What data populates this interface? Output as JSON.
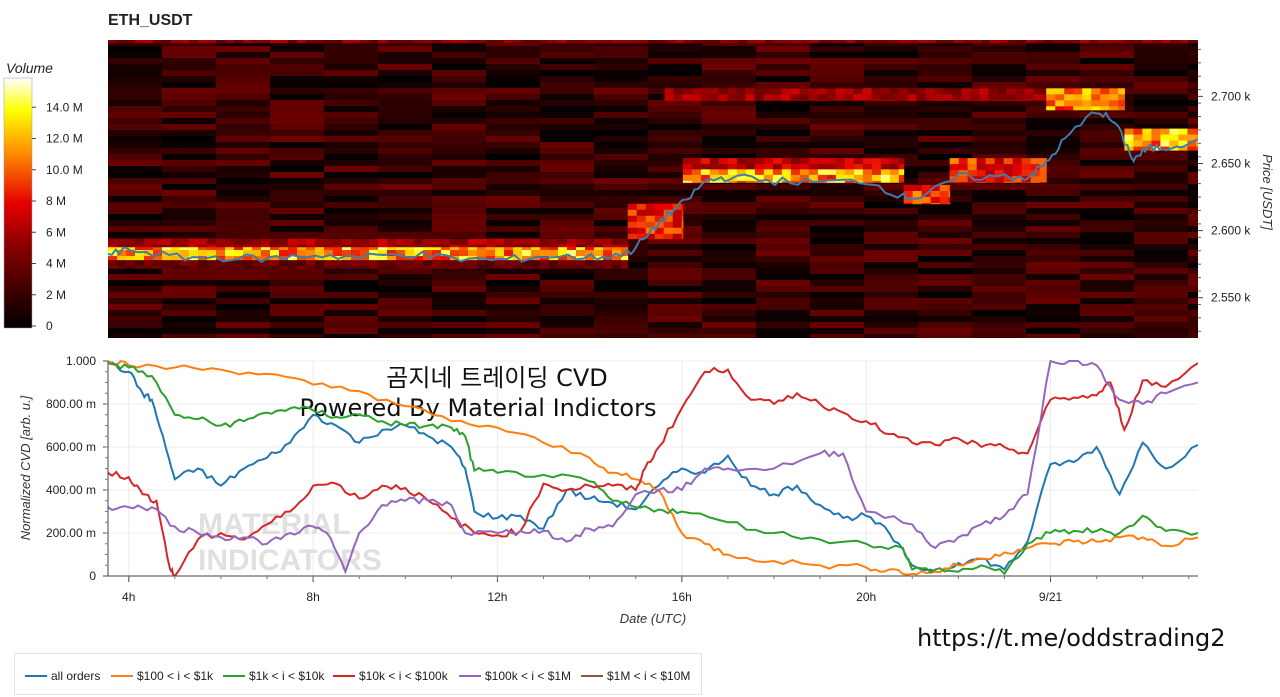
{
  "title": "ETH_USDT",
  "url": "https://t.me/oddstrading2",
  "colorbar": {
    "title": "Volume",
    "ticks": [
      {
        "label": "0",
        "value": 0
      },
      {
        "label": "2 M",
        "value": 2
      },
      {
        "label": "4 M",
        "value": 4
      },
      {
        "label": "6 M",
        "value": 6
      },
      {
        "label": "8 M",
        "value": 8
      },
      {
        "label": "10.0 M",
        "value": 10
      },
      {
        "label": "12.0 M",
        "value": 12
      },
      {
        "label": "14.0 M",
        "value": 14
      }
    ],
    "max": 16
  },
  "watermark": {
    "line1": "곰지네 트레이딩 CVD",
    "line2": "Powered By Material Indictors",
    "logo_line1": "MATERIAL",
    "logo_line2": "INDICATORS"
  },
  "legend": [
    {
      "label": "all orders",
      "color": "#1f77b4"
    },
    {
      "label": "$100 < i < $1k",
      "color": "#ff7f0e"
    },
    {
      "label": "$1k < i < $10k",
      "color": "#2ca02c"
    },
    {
      "label": "$10k < i < $100k",
      "color": "#d62728"
    },
    {
      "label": "$100k < i < $1M",
      "color": "#9467bd"
    },
    {
      "label": "$1M < i < $10M",
      "color": "#8c564b"
    }
  ],
  "chart_data": [
    {
      "type": "heatmap",
      "title": "ETH_USDT",
      "ylabel": "Price [USDT]",
      "x_range_hours": [
        3.5,
        27.2
      ],
      "ylim": [
        2520,
        2742
      ],
      "y_ticks": [
        {
          "label": "2.550 k",
          "value": 2550
        },
        {
          "label": "2.600 k",
          "value": 2600
        },
        {
          "label": "2.650 k",
          "value": 2650
        },
        {
          "label": "2.700 k",
          "value": 2700
        }
      ],
      "colorscale": "hot",
      "grid": false,
      "price_line": {
        "color": "#3f7cac",
        "x": [
          3.5,
          4,
          5,
          6,
          7,
          8,
          9,
          10,
          11,
          12,
          13,
          14,
          14.8,
          15.2,
          15.6,
          16,
          16.5,
          17,
          18,
          19,
          20,
          20.8,
          21.2,
          22,
          23,
          23.5,
          23.9,
          24.3,
          25,
          25.4,
          25.8,
          26.1,
          26.5,
          27.2
        ],
        "y": [
          2582,
          2586,
          2580,
          2580,
          2579,
          2582,
          2580,
          2583,
          2579,
          2578,
          2581,
          2580,
          2583,
          2595,
          2610,
          2620,
          2637,
          2640,
          2637,
          2636,
          2637,
          2625,
          2625,
          2640,
          2640,
          2640,
          2650,
          2668,
          2690,
          2680,
          2653,
          2661,
          2662,
          2668
        ]
      },
      "bands": [
        {
          "x": [
            3.5,
            14.8
          ],
          "y": [
            2578,
            2590
          ],
          "value": 12
        },
        {
          "x": [
            3.5,
            14.8
          ],
          "y": [
            2588,
            2594
          ],
          "value": 6
        },
        {
          "x": [
            3.5,
            14.8
          ],
          "y": [
            2572,
            2578
          ],
          "value": 4
        },
        {
          "x": [
            14.8,
            16.0
          ],
          "y": [
            2594,
            2620
          ],
          "value": 9
        },
        {
          "x": [
            16.0,
            20.8
          ],
          "y": [
            2636,
            2646
          ],
          "value": 12
        },
        {
          "x": [
            16.0,
            20.8
          ],
          "y": [
            2646,
            2654
          ],
          "value": 7
        },
        {
          "x": [
            20.8,
            21.8
          ],
          "y": [
            2620,
            2634
          ],
          "value": 10
        },
        {
          "x": [
            21.8,
            23.9
          ],
          "y": [
            2636,
            2654
          ],
          "value": 9
        },
        {
          "x": [
            15.6,
            23.9
          ],
          "y": [
            2697,
            2706
          ],
          "value": 6
        },
        {
          "x": [
            23.9,
            25.6
          ],
          "y": [
            2690,
            2706
          ],
          "value": 11
        },
        {
          "x": [
            25.6,
            27.2
          ],
          "y": [
            2660,
            2676
          ],
          "value": 12
        },
        {
          "x": [
            3.5,
            27.2
          ],
          "y": [
            2740,
            2742
          ],
          "value": 5
        }
      ]
    },
    {
      "type": "line",
      "xlabel": "Date (UTC)",
      "ylabel": "Normalized CVD [arb. u.]",
      "xlim": [
        3.55,
        27.2
      ],
      "ylim": [
        0,
        1
      ],
      "x_ticks": [
        {
          "label": "4h",
          "value": 4
        },
        {
          "label": "8h",
          "value": 8
        },
        {
          "label": "12h",
          "value": 12
        },
        {
          "label": "16h",
          "value": 16
        },
        {
          "label": "20h",
          "value": 20
        },
        {
          "label": "9/21",
          "value": 24
        }
      ],
      "y_ticks": [
        {
          "label": "0",
          "value": 0
        },
        {
          "label": "200.00 m",
          "value": 0.2
        },
        {
          "label": "400.00 m",
          "value": 0.4
        },
        {
          "label": "600.00 m",
          "value": 0.6
        },
        {
          "label": "800.00 m",
          "value": 0.8
        },
        {
          "label": "1.000",
          "value": 1.0
        }
      ],
      "grid": true,
      "legend_position": "bottom-left",
      "series": [
        {
          "name": "all orders",
          "color": "#1f77b4",
          "x": [
            3.55,
            4,
            4.3,
            4.5,
            4.8,
            5,
            5.5,
            6,
            6.5,
            7,
            7.5,
            8,
            8.5,
            9,
            9.5,
            10,
            10.5,
            11,
            11.3,
            11.5,
            12,
            12.5,
            13,
            13.5,
            14,
            14.5,
            15,
            15.5,
            16,
            16.5,
            17,
            17.5,
            18,
            18.5,
            19,
            19.5,
            20,
            20.5,
            21,
            21.5,
            22,
            22.5,
            23,
            23.5,
            24,
            24.5,
            25,
            25.5,
            26,
            26.5,
            27.2
          ],
          "y": [
            0.99,
            0.95,
            0.85,
            0.82,
            0.6,
            0.45,
            0.5,
            0.42,
            0.5,
            0.55,
            0.62,
            0.75,
            0.7,
            0.62,
            0.68,
            0.7,
            0.65,
            0.6,
            0.5,
            0.3,
            0.27,
            0.28,
            0.22,
            0.4,
            0.36,
            0.34,
            0.31,
            0.42,
            0.5,
            0.48,
            0.56,
            0.42,
            0.38,
            0.42,
            0.33,
            0.27,
            0.28,
            0.2,
            0.05,
            0.02,
            0.06,
            0.08,
            0.03,
            0.16,
            0.52,
            0.53,
            0.6,
            0.38,
            0.62,
            0.5,
            0.61
          ]
        },
        {
          "name": "$100 < i < $1k",
          "color": "#ff7f0e",
          "x": [
            3.55,
            4,
            5,
            6,
            7,
            8,
            9,
            10,
            11,
            12,
            13,
            14,
            14.5,
            15,
            15.5,
            16,
            16.5,
            17,
            18,
            19,
            20,
            20.5,
            21,
            21.5,
            22,
            22.5,
            23,
            23.5,
            24,
            24.5,
            25,
            25.5,
            26,
            26.5,
            27.2
          ],
          "y": [
            1.0,
            0.98,
            0.97,
            0.96,
            0.94,
            0.89,
            0.86,
            0.79,
            0.72,
            0.69,
            0.62,
            0.55,
            0.48,
            0.45,
            0.4,
            0.2,
            0.15,
            0.1,
            0.07,
            0.05,
            0.04,
            0.03,
            0.01,
            0.02,
            0.05,
            0.08,
            0.11,
            0.13,
            0.15,
            0.16,
            0.16,
            0.18,
            0.18,
            0.14,
            0.18
          ]
        },
        {
          "name": "$1k < i < $10k",
          "color": "#2ca02c",
          "x": [
            3.55,
            4,
            4.5,
            5,
            5.5,
            6,
            6.5,
            7,
            7.5,
            8,
            8.5,
            9,
            9.5,
            10,
            10.5,
            11,
            11.3,
            11.5,
            12,
            13,
            14,
            14.5,
            15,
            15.5,
            16,
            17,
            18,
            19,
            20,
            20.8,
            21,
            21.5,
            22,
            22.5,
            23,
            23.5,
            24,
            24.5,
            25,
            25.5,
            26,
            26.5,
            27.2
          ],
          "y": [
            0.99,
            0.97,
            0.93,
            0.75,
            0.73,
            0.7,
            0.72,
            0.76,
            0.78,
            0.77,
            0.74,
            0.75,
            0.72,
            0.7,
            0.7,
            0.69,
            0.65,
            0.49,
            0.48,
            0.47,
            0.44,
            0.35,
            0.32,
            0.31,
            0.3,
            0.25,
            0.2,
            0.17,
            0.15,
            0.13,
            0.03,
            0.03,
            0.02,
            0.05,
            0.01,
            0.15,
            0.2,
            0.21,
            0.21,
            0.2,
            0.28,
            0.21,
            0.2
          ]
        },
        {
          "name": "$10k < i < $100k",
          "color": "#d62728",
          "x": [
            3.55,
            4,
            4.3,
            4.6,
            4.9,
            5.0,
            5.5,
            6,
            6.5,
            7,
            7.5,
            8,
            8.5,
            9,
            9.5,
            10,
            10.5,
            11,
            11.5,
            12,
            12.5,
            13,
            13.5,
            14,
            14.5,
            15,
            15.2,
            15.5,
            16,
            16.5,
            17,
            17.5,
            18,
            18.5,
            19,
            19.5,
            20,
            20.5,
            21,
            21.5,
            22,
            22.5,
            23,
            23.5,
            24,
            24.5,
            25,
            25.3,
            25.6,
            26,
            26.5,
            27.2
          ],
          "y": [
            0.48,
            0.46,
            0.38,
            0.35,
            0.03,
            0.0,
            0.17,
            0.2,
            0.17,
            0.24,
            0.3,
            0.42,
            0.43,
            0.36,
            0.42,
            0.41,
            0.35,
            0.27,
            0.2,
            0.19,
            0.21,
            0.43,
            0.4,
            0.42,
            0.42,
            0.4,
            0.5,
            0.6,
            0.78,
            0.95,
            0.96,
            0.82,
            0.8,
            0.85,
            0.8,
            0.76,
            0.72,
            0.66,
            0.62,
            0.61,
            0.64,
            0.6,
            0.6,
            0.57,
            0.82,
            0.83,
            0.84,
            0.9,
            0.68,
            0.91,
            0.88,
            0.99
          ]
        },
        {
          "name": "$100k < i < $1M",
          "color": "#9467bd",
          "x": [
            3.55,
            4,
            4.5,
            5,
            5.5,
            6,
            6.5,
            7,
            7.5,
            8,
            8.3,
            8.7,
            9,
            9.5,
            10,
            10.5,
            11,
            11.3,
            12,
            12.5,
            13,
            13.5,
            14,
            14.5,
            15,
            15.5,
            16,
            16.5,
            17,
            18,
            19,
            19.5,
            20,
            21,
            21.5,
            22,
            22.5,
            23,
            23.5,
            24,
            24.5,
            25,
            25.5,
            26,
            26.5,
            27.2
          ],
          "y": [
            0.32,
            0.32,
            0.32,
            0.23,
            0.2,
            0.18,
            0.18,
            0.15,
            0.2,
            0.23,
            0.2,
            0.02,
            0.2,
            0.33,
            0.35,
            0.35,
            0.33,
            0.2,
            0.2,
            0.21,
            0.21,
            0.16,
            0.22,
            0.23,
            0.38,
            0.4,
            0.4,
            0.5,
            0.5,
            0.5,
            0.57,
            0.57,
            0.3,
            0.24,
            0.13,
            0.18,
            0.24,
            0.28,
            0.38,
            1.0,
            1.0,
            0.98,
            0.82,
            0.8,
            0.85,
            0.9
          ]
        },
        {
          "name": "$1M < i < $10M",
          "color": "#8c564b",
          "x": [],
          "y": []
        }
      ]
    }
  ]
}
